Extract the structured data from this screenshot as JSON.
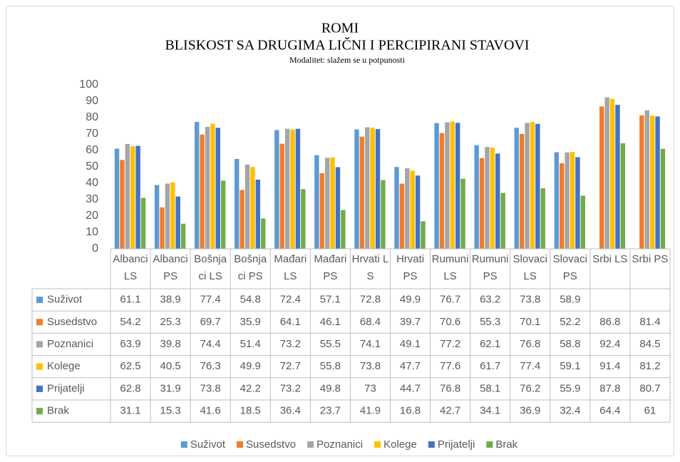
{
  "chart_data": {
    "type": "bar",
    "title": "ROMI",
    "subtitle": "BLISKOST SA DRUGIMA LIČNI I PERCIPIRANI STAVOVI",
    "note": "Modalitet: slažem se u potpunosti",
    "categories": [
      "Albanci LS",
      "Albanci PS",
      "Bošnjaci LS",
      "Bošnjaci PS",
      "Mađari LS",
      "Mađari PS",
      "Hrvati LS",
      "Hrvati PS",
      "Rumuni LS",
      "Rumuni PS",
      "Slovaci LS",
      "Slovaci PS",
      "Srbi LS",
      "Srbi PS"
    ],
    "series": [
      {
        "name": "Suživot",
        "color": "#5b9bd5",
        "values": [
          61.1,
          38.9,
          77.4,
          54.8,
          72.4,
          57.1,
          72.8,
          49.9,
          76.7,
          63.2,
          73.8,
          58.9,
          null,
          null
        ]
      },
      {
        "name": "Susedstvo",
        "color": "#ed7d31",
        "values": [
          54.2,
          25.3,
          69.7,
          35.9,
          64.1,
          46.1,
          68.4,
          39.7,
          70.6,
          55.3,
          70.1,
          52.2,
          86.8,
          81.4
        ]
      },
      {
        "name": "Poznanici",
        "color": "#a5a5a5",
        "values": [
          63.9,
          39.8,
          74.4,
          51.4,
          73.2,
          55.5,
          74.1,
          49.1,
          77.2,
          62.1,
          76.8,
          58.8,
          92.4,
          84.5
        ]
      },
      {
        "name": "Kolege",
        "color": "#ffc000",
        "values": [
          62.5,
          40.5,
          76.3,
          49.9,
          72.7,
          55.8,
          73.8,
          47.7,
          77.6,
          61.7,
          77.4,
          59.1,
          91.4,
          81.2
        ]
      },
      {
        "name": "Prijatelji",
        "color": "#4472c4",
        "values": [
          62.8,
          31.9,
          73.8,
          42.2,
          73.2,
          49.8,
          73,
          44.7,
          76.8,
          58.1,
          76.2,
          55.9,
          87.8,
          80.7
        ]
      },
      {
        "name": "Brak",
        "color": "#70ad47",
        "values": [
          31.1,
          15.3,
          41.6,
          18.5,
          36.4,
          23.7,
          41.9,
          16.8,
          42.7,
          34.1,
          36.9,
          32.4,
          64.4,
          61
        ]
      }
    ],
    "ylim": [
      0,
      100
    ],
    "yticks": [
      0,
      10,
      20,
      30,
      40,
      50,
      60,
      70,
      80,
      90,
      100
    ],
    "grid": false
  }
}
